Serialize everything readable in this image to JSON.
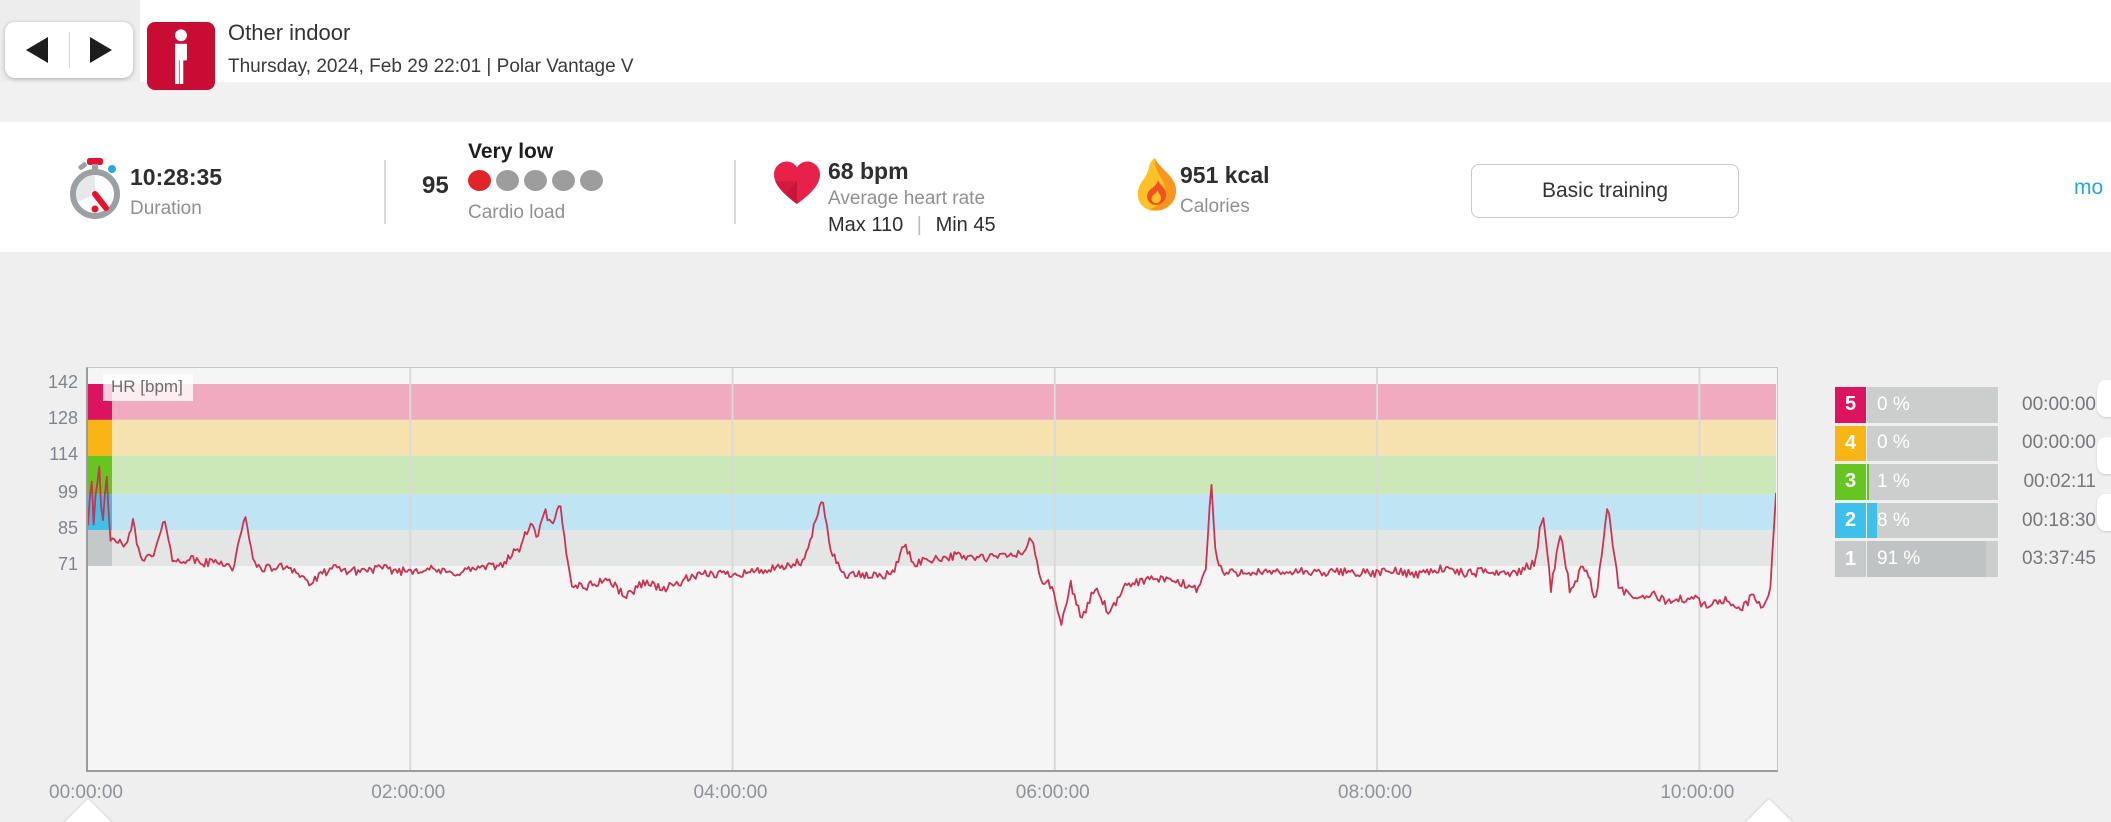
{
  "header": {
    "title": "Other indoor",
    "subtitle": "Thursday, 2024, Feb 29 22:01  |  Polar Vantage V",
    "sport": "other-indoor"
  },
  "stats": {
    "duration": {
      "value": "10:28:35",
      "label": "Duration"
    },
    "cardio_load": {
      "value": "95",
      "status": "Very low",
      "label": "Cardio load",
      "dots_total": 5,
      "dots_active": 1,
      "dot_active_color": "#e02427",
      "dot_inactive_color": "#9d9d9d"
    },
    "heart_rate": {
      "value": "68 bpm",
      "label": "Average heart rate",
      "max_label": "Max 110",
      "separator": "|",
      "min_label": "Min 45"
    },
    "calories": {
      "value": "951 kcal",
      "label": "Calories"
    },
    "training_benefit_button": "Basic training",
    "more_link": "mo"
  },
  "chart_data": {
    "type": "line",
    "title": "HR [bpm]",
    "ylabel": "HR [bpm]",
    "y_ticks": [
      142,
      128,
      114,
      99,
      85,
      71
    ],
    "x_ticks": [
      "00:00:00",
      "02:00:00",
      "04:00:00",
      "06:00:00",
      "08:00:00",
      "10:00:00"
    ],
    "x_tick_hours": [
      0,
      2,
      4,
      6,
      8,
      10
    ],
    "duration_hours": 10.476,
    "grid": true,
    "zones": [
      {
        "zone": 5,
        "from_bpm": 128,
        "to_bpm": 142,
        "solid_color": "#dc135e",
        "band_color": "#f0abc1"
      },
      {
        "zone": 4,
        "from_bpm": 114,
        "to_bpm": 128,
        "solid_color": "#f9b513",
        "band_color": "#f6e2ae"
      },
      {
        "zone": 3,
        "from_bpm": 99,
        "to_bpm": 114,
        "solid_color": "#66c520",
        "band_color": "#cce8b8"
      },
      {
        "zone": 2,
        "from_bpm": 85,
        "to_bpm": 99,
        "solid_color": "#3fc0ea",
        "band_color": "#bfe4f4"
      },
      {
        "zone": 1,
        "from_bpm": 71,
        "to_bpm": 85,
        "solid_color": "#c4c8c8",
        "band_color": "#e4e6e6"
      }
    ],
    "series": [
      {
        "name": "HR",
        "color": "#cb3350",
        "unit": "bpm",
        "avg": 68,
        "max": 110,
        "min": 45,
        "keypoints": [
          [
            0,
            88
          ],
          [
            0.02,
            108
          ],
          [
            0.035,
            88
          ],
          [
            0.05,
            102
          ],
          [
            0.07,
            110
          ],
          [
            0.09,
            85
          ],
          [
            0.115,
            106
          ],
          [
            0.14,
            80
          ],
          [
            0.18,
            82
          ],
          [
            0.22,
            77
          ],
          [
            0.28,
            88
          ],
          [
            0.32,
            75
          ],
          [
            0.4,
            74
          ],
          [
            0.48,
            89
          ],
          [
            0.53,
            72
          ],
          [
            0.62,
            74
          ],
          [
            0.72,
            72
          ],
          [
            0.82,
            73
          ],
          [
            0.9,
            70
          ],
          [
            0.98,
            91
          ],
          [
            1.03,
            71
          ],
          [
            1.12,
            70
          ],
          [
            1.25,
            71
          ],
          [
            1.38,
            64
          ],
          [
            1.5,
            70
          ],
          [
            1.65,
            69
          ],
          [
            1.8,
            70
          ],
          [
            1.95,
            69
          ],
          [
            2.1,
            70
          ],
          [
            2.25,
            68
          ],
          [
            2.4,
            70
          ],
          [
            2.55,
            71
          ],
          [
            2.68,
            78
          ],
          [
            2.74,
            87
          ],
          [
            2.79,
            83
          ],
          [
            2.84,
            92
          ],
          [
            2.88,
            86
          ],
          [
            2.93,
            95
          ],
          [
            2.96,
            80
          ],
          [
            3.0,
            64
          ],
          [
            3.1,
            63
          ],
          [
            3.22,
            66
          ],
          [
            3.34,
            59
          ],
          [
            3.45,
            65
          ],
          [
            3.58,
            62
          ],
          [
            3.72,
            66
          ],
          [
            3.86,
            68
          ],
          [
            4.0,
            68
          ],
          [
            4.15,
            69
          ],
          [
            4.3,
            70
          ],
          [
            4.45,
            73
          ],
          [
            4.52,
            90
          ],
          [
            4.56,
            96
          ],
          [
            4.61,
            78
          ],
          [
            4.68,
            68
          ],
          [
            4.84,
            67
          ],
          [
            5.0,
            68
          ],
          [
            5.06,
            80
          ],
          [
            5.12,
            72
          ],
          [
            5.25,
            74
          ],
          [
            5.4,
            75
          ],
          [
            5.55,
            74
          ],
          [
            5.7,
            75
          ],
          [
            5.8,
            76
          ],
          [
            5.86,
            82
          ],
          [
            5.91,
            66
          ],
          [
            5.98,
            63
          ],
          [
            6.04,
            48
          ],
          [
            6.1,
            64
          ],
          [
            6.17,
            50
          ],
          [
            6.25,
            63
          ],
          [
            6.34,
            52
          ],
          [
            6.45,
            64
          ],
          [
            6.6,
            66
          ],
          [
            6.75,
            65
          ],
          [
            6.88,
            62
          ],
          [
            6.94,
            70
          ],
          [
            6.97,
            105
          ],
          [
            7.0,
            74
          ],
          [
            7.05,
            68
          ],
          [
            7.2,
            69
          ],
          [
            7.35,
            68
          ],
          [
            7.5,
            69
          ],
          [
            7.65,
            68
          ],
          [
            7.8,
            69
          ],
          [
            7.95,
            68
          ],
          [
            8.1,
            69
          ],
          [
            8.25,
            68
          ],
          [
            8.4,
            70
          ],
          [
            8.55,
            68
          ],
          [
            8.7,
            69
          ],
          [
            8.85,
            68
          ],
          [
            8.98,
            72
          ],
          [
            9.03,
            93
          ],
          [
            9.08,
            62
          ],
          [
            9.14,
            85
          ],
          [
            9.2,
            60
          ],
          [
            9.28,
            72
          ],
          [
            9.36,
            58
          ],
          [
            9.43,
            95
          ],
          [
            9.5,
            63
          ],
          [
            9.58,
            58
          ],
          [
            9.7,
            60
          ],
          [
            9.82,
            57
          ],
          [
            9.95,
            59
          ],
          [
            10.05,
            55
          ],
          [
            10.15,
            58
          ],
          [
            10.25,
            54
          ],
          [
            10.33,
            59
          ],
          [
            10.4,
            55
          ],
          [
            10.44,
            62
          ],
          [
            10.476,
            99
          ]
        ],
        "jitter_bpm": 1.7
      }
    ]
  },
  "zone_table": {
    "rows": [
      {
        "zone": "5",
        "color": "#dc135e",
        "percent": "0 %",
        "percent_value": 0,
        "time": "00:00:00"
      },
      {
        "zone": "4",
        "color": "#f9b513",
        "percent": "0 %",
        "percent_value": 0,
        "time": "00:00:00"
      },
      {
        "zone": "3",
        "color": "#66c520",
        "percent": "1 %",
        "percent_value": 1,
        "time": "00:02:11"
      },
      {
        "zone": "2",
        "color": "#3fc0ea",
        "percent": "8 %",
        "percent_value": 8,
        "time": "00:18:30"
      },
      {
        "zone": "1",
        "color": "#c7caca",
        "percent": "91 %",
        "percent_value": 91,
        "time": "03:37:45",
        "fill_color": "#bfc3c3"
      }
    ]
  }
}
